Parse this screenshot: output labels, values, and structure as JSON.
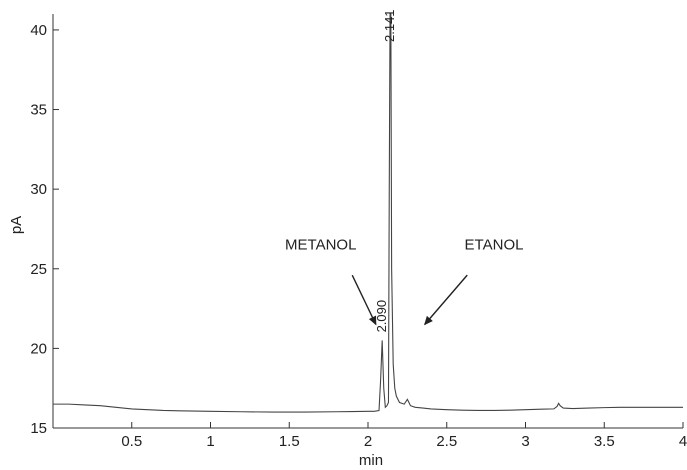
{
  "chart_data": {
    "type": "line",
    "xlabel": "min",
    "ylabel": "pA",
    "xlim": [
      0,
      4
    ],
    "ylim": [
      15,
      41
    ],
    "x_ticks": [
      0.5,
      1,
      1.5,
      2,
      2.5,
      3,
      3.5,
      4
    ],
    "x_tick_labels": [
      "0.5",
      "1",
      "1.5",
      "2",
      "2.5",
      "3",
      "3.5",
      "4"
    ],
    "y_ticks": [
      15,
      20,
      25,
      30,
      35,
      40
    ],
    "y_tick_labels": [
      "15",
      "20",
      "25",
      "30",
      "35",
      "40"
    ],
    "grid": false,
    "series": [
      {
        "color": "#444444",
        "x": [
          0.0,
          0.1,
          0.2,
          0.3,
          0.4,
          0.5,
          0.6,
          0.7,
          0.8,
          1.0,
          1.2,
          1.4,
          1.6,
          1.8,
          1.9,
          2.0,
          2.04,
          2.07,
          2.08,
          2.09,
          2.1,
          2.11,
          2.12,
          2.13,
          2.135,
          2.14,
          2.145,
          2.15,
          2.16,
          2.17,
          2.18,
          2.2,
          2.23,
          2.25,
          2.26,
          2.27,
          2.3,
          2.35,
          2.4,
          2.5,
          2.6,
          2.7,
          2.8,
          2.9,
          3.0,
          3.1,
          3.18,
          3.2,
          3.21,
          3.22,
          3.24,
          3.3,
          3.4,
          3.5,
          3.6,
          3.7,
          3.8,
          3.9,
          4.0
        ],
        "y": [
          16.5,
          16.5,
          16.45,
          16.4,
          16.3,
          16.2,
          16.15,
          16.1,
          16.08,
          16.05,
          16.02,
          16.0,
          16.0,
          16.02,
          16.03,
          16.05,
          16.05,
          16.1,
          18.0,
          20.5,
          17.5,
          16.3,
          16.4,
          16.6,
          30.0,
          41.0,
          41.0,
          25.0,
          19.0,
          17.5,
          17.0,
          16.6,
          16.5,
          16.8,
          16.6,
          16.4,
          16.3,
          16.25,
          16.2,
          16.15,
          16.12,
          16.1,
          16.1,
          16.12,
          16.15,
          16.18,
          16.2,
          16.35,
          16.55,
          16.4,
          16.25,
          16.22,
          16.25,
          16.28,
          16.3,
          16.3,
          16.3,
          16.3,
          16.3
        ]
      }
    ],
    "peaks": [
      {
        "x": 2.09,
        "y": 20.5,
        "label": "2.090"
      },
      {
        "x": 2.141,
        "y": 41.0,
        "label": "2.141"
      }
    ],
    "annotations": [
      {
        "text": "METANOL",
        "text_x": 1.7,
        "text_y": 26.2,
        "arrow_from": [
          1.9,
          24.6
        ],
        "arrow_to": [
          2.05,
          21.5
        ]
      },
      {
        "text": "ETANOL",
        "text_x": 2.8,
        "text_y": 26.2,
        "arrow_from": [
          2.63,
          24.6
        ],
        "arrow_to": [
          2.36,
          21.5
        ]
      }
    ]
  }
}
